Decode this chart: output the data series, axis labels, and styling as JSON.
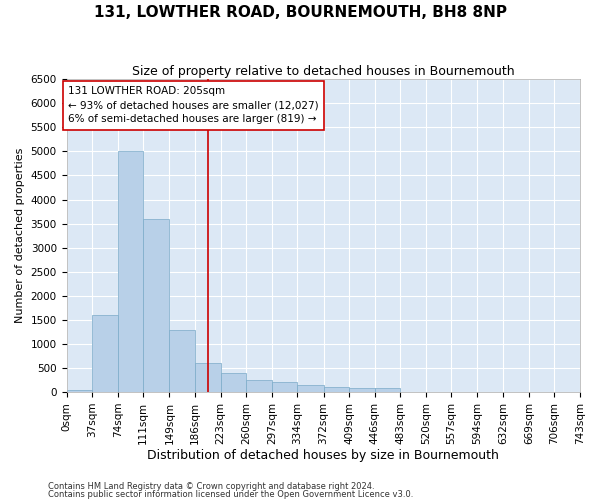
{
  "title": "131, LOWTHER ROAD, BOURNEMOUTH, BH8 8NP",
  "subtitle": "Size of property relative to detached houses in Bournemouth",
  "xlabel": "Distribution of detached houses by size in Bournemouth",
  "ylabel": "Number of detached properties",
  "footnote1": "Contains HM Land Registry data © Crown copyright and database right 2024.",
  "footnote2": "Contains public sector information licensed under the Open Government Licence v3.0.",
  "bar_color": "#b8d0e8",
  "bar_edge_color": "#7aaac8",
  "background_color": "#dce8f5",
  "grid_color": "#ffffff",
  "vline_color": "#cc0000",
  "vline_x": 205,
  "annotation_text": "131 LOWTHER ROAD: 205sqm\n← 93% of detached houses are smaller (12,027)\n6% of semi-detached houses are larger (819) →",
  "annotation_box_color": "#ffffff",
  "annotation_box_edge": "#cc0000",
  "bin_edges": [
    0,
    37,
    74,
    111,
    149,
    186,
    223,
    260,
    297,
    334,
    372,
    409,
    446,
    483,
    520,
    557,
    594,
    632,
    669,
    706,
    743
  ],
  "bin_heights": [
    50,
    1600,
    5000,
    3600,
    1300,
    600,
    400,
    250,
    200,
    150,
    100,
    80,
    80,
    10,
    5,
    3,
    2,
    1,
    1,
    1
  ],
  "ylim": [
    0,
    6500
  ],
  "yticks": [
    0,
    500,
    1000,
    1500,
    2000,
    2500,
    3000,
    3500,
    4000,
    4500,
    5000,
    5500,
    6000,
    6500
  ],
  "title_fontsize": 11,
  "subtitle_fontsize": 9,
  "xlabel_fontsize": 9,
  "ylabel_fontsize": 8,
  "tick_fontsize": 7.5,
  "annotation_fontsize": 7.5
}
